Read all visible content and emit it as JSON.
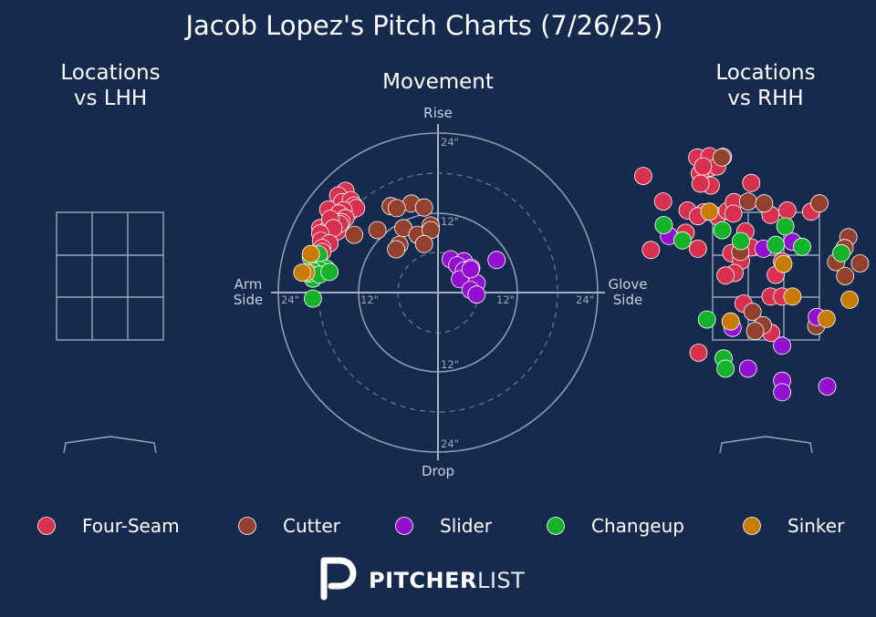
{
  "title": "Jacob Lopez's Pitch Charts (7/26/25)",
  "panels": {
    "lhh_title_line1": "Locations",
    "lhh_title_line2": "vs LHH",
    "movement_title": "Movement",
    "rhh_title_line1": "Locations",
    "rhh_title_line2": "vs RHH"
  },
  "movement_axes": {
    "top": "Rise",
    "bottom": "Drop",
    "left_line1": "Arm",
    "left_line2": "Side",
    "right_line1": "Glove",
    "right_line2": "Side",
    "ring_labels": [
      "24\"",
      "12\"",
      "12\"",
      "24\"",
      "24\"",
      "12\"",
      "12\"",
      "24\""
    ]
  },
  "branding": {
    "logo_bold": "PITCHER",
    "logo_light": "LIST"
  },
  "colors": {
    "background": "#152a4c",
    "Four-Seam": "#d8304e",
    "Cutter": "#94402f",
    "Slider": "#9410d0",
    "Changeup": "#14b32a",
    "Sinker": "#c67c07"
  },
  "chart_data": [
    {
      "type": "scatter",
      "title": "Movement",
      "x_label": "Arm Side / Glove Side",
      "y_label": "Rise / Drop",
      "xlim": [
        -24,
        24
      ],
      "ylim": [
        -24,
        24
      ],
      "legend": [
        "Four-Seam",
        "Cutter",
        "Slider",
        "Changeup",
        "Sinker"
      ],
      "legend_position": "bottom",
      "series": [
        {
          "name": "Four-Seam",
          "points": [
            [
              -13.9,
              15.3
            ],
            [
              -15,
              14.6
            ],
            [
              -14.4,
              13.6
            ],
            [
              -13.1,
              13.9
            ],
            [
              -12.6,
              13.1
            ],
            [
              -13.3,
              12.1
            ],
            [
              -12.3,
              12.7
            ],
            [
              -14.2,
              12.4
            ],
            [
              -16.5,
              12.5
            ],
            [
              -14.9,
              11.9
            ],
            [
              -13.9,
              11.2
            ],
            [
              -14.5,
              10.6
            ],
            [
              -15.9,
              10.5
            ],
            [
              -15.2,
              10
            ],
            [
              -17.7,
              9.7
            ],
            [
              -16.7,
              9.4
            ],
            [
              -15.1,
              9.2
            ],
            [
              -14.8,
              10.3
            ],
            [
              -16.2,
              11.1
            ],
            [
              -15.7,
              9.7
            ],
            [
              -17.7,
              8.9
            ],
            [
              -17.6,
              7.8
            ],
            [
              -16.3,
              7.4
            ],
            [
              -17.4,
              6.7
            ],
            [
              -17.4,
              6.1
            ]
          ]
        },
        {
          "name": "Cutter",
          "points": [
            [
              -7.1,
              13
            ],
            [
              -4,
              13.4
            ],
            [
              -6.2,
              12.7
            ],
            [
              -2.1,
              12.8
            ],
            [
              -9.1,
              9.4
            ],
            [
              -5.2,
              9.7
            ],
            [
              -3.1,
              8.7
            ],
            [
              -1.1,
              10.1
            ],
            [
              -1.1,
              9.4
            ],
            [
              -2.1,
              7.3
            ],
            [
              -5.8,
              7.2
            ],
            [
              -6.3,
              6.5
            ],
            [
              -12.6,
              8.7
            ]
          ]
        },
        {
          "name": "Slider",
          "points": [
            [
              1.9,
              5
            ],
            [
              3.9,
              4.7
            ],
            [
              2.9,
              4.1
            ],
            [
              5,
              3.7
            ],
            [
              3.9,
              3.3
            ],
            [
              3.3,
              2
            ],
            [
              5.8,
              1.4
            ],
            [
              4.9,
              0.4
            ],
            [
              5.8,
              -0.3
            ],
            [
              8.8,
              4.9
            ],
            [
              4.9,
              3.5
            ]
          ]
        },
        {
          "name": "Changeup",
          "points": [
            [
              -18.2,
              5.3
            ],
            [
              -19.1,
              5.3
            ],
            [
              -17.9,
              5.7
            ],
            [
              -18.8,
              2.1
            ],
            [
              -16.8,
              3.6
            ],
            [
              -17.7,
              3.4
            ],
            [
              -18.7,
              3.2
            ],
            [
              -19.3,
              2.9
            ],
            [
              -17.8,
              2.7
            ],
            [
              -16.3,
              3.1
            ],
            [
              -18.8,
              -0.9
            ]
          ]
        },
        {
          "name": "Sinker",
          "points": [
            [
              -19.1,
              5.8
            ],
            [
              -19.8,
              3
            ],
            [
              -20.4,
              3
            ]
          ]
        }
      ]
    },
    {
      "type": "scatter",
      "title": "Locations vs LHH",
      "x_label": "",
      "y_label": "",
      "legend": [
        "Four-Seam",
        "Cutter",
        "Slider",
        "Changeup",
        "Sinker"
      ],
      "series": []
    },
    {
      "type": "scatter",
      "title": "Locations vs RHH",
      "x_label": "",
      "y_label": "",
      "xlim": [
        -2,
        2
      ],
      "ylim": [
        0,
        5
      ],
      "legend": [
        "Four-Seam",
        "Cutter",
        "Slider",
        "Changeup",
        "Sinker"
      ],
      "series": [
        {
          "name": "Four-Seam",
          "points": [
            [
              -1.07,
              4.36
            ],
            [
              -0.87,
              4.2
            ],
            [
              -1.03,
              4.11
            ],
            [
              -0.88,
              4.38
            ],
            [
              -0.76,
              4.22
            ],
            [
              -0.98,
              4.22
            ],
            [
              -0.86,
              3.92
            ],
            [
              -1.02,
              3.95
            ],
            [
              -0.67,
              4.37
            ],
            [
              -0.23,
              3.96
            ],
            [
              -1.91,
              4.07
            ],
            [
              -1.6,
              3.67
            ],
            [
              -1.22,
              3.53
            ],
            [
              -0.97,
              3.5
            ],
            [
              -1.06,
              3.44
            ],
            [
              -0.76,
              3.44
            ],
            [
              -0.6,
              3.52
            ],
            [
              -0.5,
              3.66
            ],
            [
              -0.51,
              3.48
            ],
            [
              0.07,
              3.46
            ],
            [
              0.33,
              3.53
            ],
            [
              -1.25,
              3.18
            ],
            [
              -0.32,
              3.2
            ],
            [
              0.7,
              3.51
            ],
            [
              -1.79,
              2.91
            ],
            [
              -1.06,
              2.93
            ],
            [
              -0.23,
              2.95
            ],
            [
              -0.54,
              2.86
            ],
            [
              -0.39,
              2.74
            ],
            [
              -0.49,
              2.55
            ],
            [
              0.25,
              2.73
            ],
            [
              -0.63,
              2.51
            ],
            [
              0.15,
              2.52
            ],
            [
              0.07,
              2.18
            ],
            [
              0.25,
              2.18
            ],
            [
              -0.35,
              2.07
            ],
            [
              0.08,
              1.61
            ],
            [
              -1.05,
              1.3
            ]
          ]
        },
        {
          "name": "Cutter",
          "points": [
            [
              -0.69,
              4.36
            ],
            [
              -0.28,
              3.67
            ],
            [
              -0.03,
              3.64
            ],
            [
              0.83,
              3.64
            ],
            [
              1.28,
              3.11
            ],
            [
              1.22,
              2.94
            ],
            [
              1.46,
              2.7
            ],
            [
              1.09,
              2.72
            ],
            [
              1.23,
              2.5
            ],
            [
              -0.4,
              2.88
            ],
            [
              -0.21,
              1.94
            ],
            [
              -0.05,
              1.73
            ],
            [
              0.78,
              1.72
            ],
            [
              -0.17,
              1.64
            ]
          ]
        },
        {
          "name": "Slider",
          "points": [
            [
              -1.51,
              3.13
            ],
            [
              -0.04,
              2.93
            ],
            [
              0.41,
              3.04
            ],
            [
              0.79,
              1.86
            ],
            [
              -0.52,
              1.69
            ],
            [
              0.25,
              1.41
            ],
            [
              -0.28,
              1.05
            ],
            [
              0.25,
              0.86
            ],
            [
              0.25,
              0.68
            ],
            [
              0.95,
              0.77
            ]
          ]
        },
        {
          "name": "Changeup",
          "points": [
            [
              0.3,
              3.28
            ],
            [
              -0.68,
              3.22
            ],
            [
              -1.59,
              3.3
            ],
            [
              -1.3,
              3.06
            ],
            [
              -0.39,
              3.05
            ],
            [
              0.15,
              2.99
            ],
            [
              0.56,
              2.96
            ],
            [
              1.17,
              2.86
            ],
            [
              -0.92,
              1.82
            ],
            [
              -0.66,
              1.21
            ],
            [
              -0.63,
              1.05
            ]
          ]
        },
        {
          "name": "Sinker",
          "points": [
            [
              -0.88,
              3.51
            ],
            [
              0.41,
              2.18
            ],
            [
              1.3,
              2.13
            ],
            [
              -0.55,
              1.79
            ],
            [
              0.94,
              1.83
            ],
            [
              0.27,
              2.69
            ]
          ]
        }
      ]
    }
  ]
}
